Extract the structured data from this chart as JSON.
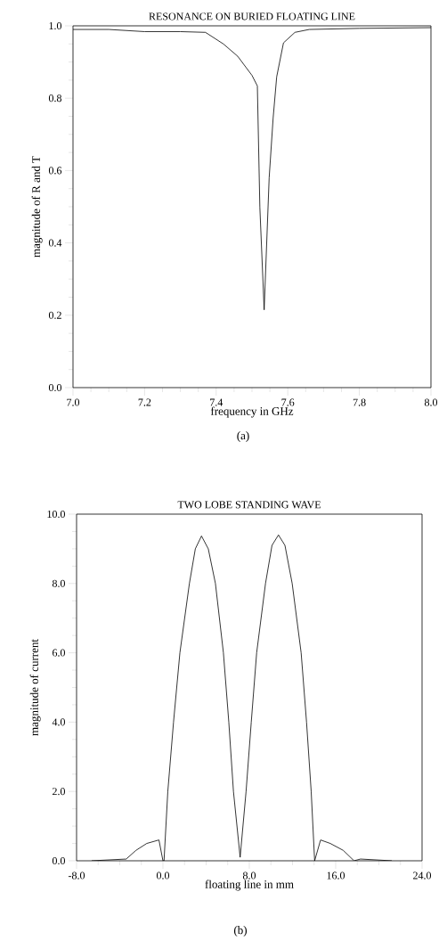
{
  "chart_data": [
    {
      "type": "line",
      "title": "RESONANCE ON BURIED FLOATING LINE",
      "xlabel": "frequency in GHz",
      "ylabel": "magnitude of R and T",
      "annotations": [
        "(a)"
      ],
      "xlim": [
        7.0,
        8.0
      ],
      "ylim": [
        0.0,
        1.0
      ],
      "xticks": [
        {
          "value": 7.0,
          "label": "7.0"
        },
        7.2,
        7.4,
        7.6,
        7.8,
        {
          "value": 8.0,
          "label": "8.0"
        }
      ],
      "yticks": [
        {
          "value": 0.0,
          "label": "0.0"
        },
        0.2,
        0.4,
        0.6,
        0.8,
        {
          "value": 1.0,
          "label": "1.0"
        }
      ],
      "marker": "none",
      "line_style": "solid",
      "series": [
        {
          "color": "#000000",
          "x": [
            7.0,
            7.1,
            7.2,
            7.3,
            7.37,
            7.42,
            7.46,
            7.5,
            7.515,
            7.522,
            7.534,
            7.548,
            7.559,
            7.569,
            7.588,
            7.62,
            7.66,
            7.8,
            8.0
          ],
          "values": [
            0.99,
            0.99,
            0.984,
            0.984,
            0.982,
            0.95,
            0.916,
            0.863,
            0.834,
            0.498,
            0.215,
            0.58,
            0.744,
            0.859,
            0.953,
            0.982,
            0.99,
            0.993,
            0.995
          ]
        }
      ]
    },
    {
      "type": "line",
      "title": "TWO LOBE STANDING WAVE",
      "xlabel": "floating line in mm",
      "ylabel": "magnitude of current",
      "annotations": [
        "(b)"
      ],
      "xlim": [
        -8.0,
        24.0
      ],
      "ylim": [
        0.0,
        10.0
      ],
      "xticks": [
        {
          "value": -8.0,
          "label": "-8.0"
        },
        {
          "value": 0.0,
          "label": "0.0"
        },
        {
          "value": 8.0,
          "label": "8.0"
        },
        {
          "value": 16.0,
          "label": "16.0"
        },
        {
          "value": 24.0,
          "label": "24.0"
        }
      ],
      "yticks": [
        {
          "value": 0.0,
          "label": "0.0"
        },
        {
          "value": 2.0,
          "label": "2.0"
        },
        {
          "value": 4.0,
          "label": "4.0"
        },
        {
          "value": 6.0,
          "label": "6.0"
        },
        {
          "value": 8.0,
          "label": "8.0"
        },
        {
          "value": 10.0,
          "label": "10.0"
        }
      ],
      "marker": "none",
      "line_style": "solid",
      "series": [
        {
          "color": "#000000",
          "x": [
            -6.6,
            -3.4,
            -2.5,
            -1.5,
            -0.37,
            0.0,
            0.1,
            0.45,
            0.98,
            1.57,
            2.45,
            3.0,
            3.57,
            4.2,
            4.86,
            5.6,
            6.1,
            6.53,
            7.15,
            7.7,
            8.18,
            8.68,
            9.5,
            10.1,
            10.7,
            11.3,
            11.97,
            12.8,
            13.3,
            13.73,
            14.05,
            14.6,
            15.5,
            16.7,
            17.7,
            18.3,
            21.2
          ],
          "values": [
            0.0,
            0.05,
            0.3,
            0.5,
            0.6,
            0.0,
            0.0,
            2.0,
            4.0,
            6.0,
            8.0,
            9.0,
            9.37,
            9.0,
            8.0,
            6.0,
            4.0,
            2.0,
            0.1,
            2.0,
            4.0,
            6.0,
            8.0,
            9.1,
            9.4,
            9.1,
            8.0,
            6.0,
            4.0,
            2.0,
            0.0,
            0.6,
            0.5,
            0.3,
            0.0,
            0.05,
            0.0
          ]
        }
      ]
    }
  ]
}
